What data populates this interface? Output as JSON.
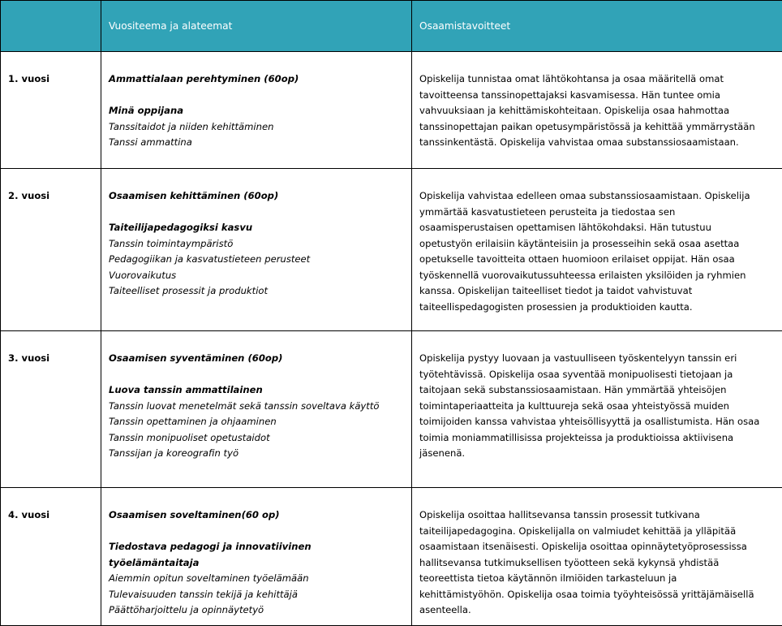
{
  "header": {
    "col1": "",
    "col2": "Vuositeema ja alateemat",
    "col3": "Osaamistavoitteet"
  },
  "header_color": "#31a3b7",
  "rows": [
    {
      "year": "1. vuosi",
      "theme": "Ammattialaan perehtyminen (60op)",
      "subtheme": [
        "Minä oppijana"
      ],
      "topics": [
        "Tanssitaidot ja niiden kehittäminen",
        "Tanssi ammattina"
      ],
      "goals": [
        "Opiskelija tunnistaa omat lähtökohtansa ja osaa määritellä omat",
        "tavoitteensa tanssinopettajaksi kasvamisessa. Hän tuntee omia",
        "vahvuuksiaan ja kehittämiskohteitaan. Opiskelija osaa hahmottaa",
        "tanssinopettajan paikan opetusympäristössä ja kehittää ymmärrystään",
        "tanssinkentästä. Opiskelija vahvistaa omaa substanssiosaamistaan."
      ]
    },
    {
      "year": "2. vuosi",
      "theme": "Osaamisen kehittäminen (60op)",
      "subtheme": [
        "Taiteilijapedagogiksi kasvu"
      ],
      "topics": [
        "Tanssin toimintaympäristö",
        "Pedagogiikan ja kasvatustieteen perusteet",
        "Vuorovaikutus",
        "Taiteelliset prosessit ja produktiot"
      ],
      "goals": [
        "Opiskelija vahvistaa edelleen omaa substanssiosaamistaan. Opiskelija",
        "ymmärtää kasvatustieteen perusteita ja tiedostaa sen",
        "osaamisperustaisen opettamisen lähtökohdaksi. Hän tutustuu",
        "opetustyön erilaisiin käytänteisiin ja prosesseihin sekä osaa asettaa",
        "opetukselle tavoitteita ottaen huomioon erilaiset oppijat. Hän osaa",
        "työskennellä vuorovaikutussuhteessa erilaisten yksilöiden ja ryhmien",
        "kanssa. Opiskelijan taiteelliset tiedot ja taidot vahvistuvat",
        "taiteellispedagogisten prosessien ja produktioiden kautta."
      ]
    },
    {
      "year": "3. vuosi",
      "theme": "Osaamisen syventäminen (60op)",
      "subtheme": [
        "Luova tanssin ammattilainen"
      ],
      "topics": [
        "Tanssin luovat menetelmät sekä tanssin soveltava käyttö",
        "Tanssin opettaminen ja ohjaaminen",
        "Tanssin monipuoliset opetustaidot",
        "Tanssijan ja koreografin työ"
      ],
      "goals": [
        "Opiskelija pystyy luovaan ja vastuulliseen työskentelyyn tanssin eri",
        "työtehtävissä. Opiskelija osaa syventää monipuolisesti tietojaan ja",
        "taitojaan sekä substanssiosaamistaan. Hän ymmärtää yhteisöjen",
        "toimintaperiaatteita ja kulttuureja sekä osaa yhteistyössä muiden",
        "toimijoiden kanssa vahvistaa yhteisöllisyyttä ja osallistumista. Hän osaa",
        "toimia moniammatillisissa projekteissa ja produktioissa aktiivisena",
        "jäsenenä."
      ]
    },
    {
      "year": "4. vuosi",
      "theme": "Osaamisen soveltaminen(60 op)",
      "subtheme": [
        "Tiedostava pedagogi ja innovatiivinen",
        "työelämäntaitaja"
      ],
      "topics": [
        "Aiemmin opitun soveltaminen työelämään",
        "Tulevaisuuden tanssin tekijä ja kehittäjä",
        "Päättöharjoittelu ja opinnäytetyö"
      ],
      "goals": [
        "Opiskelija osoittaa hallitsevansa tanssin prosessit tutkivana",
        "taiteilijapedagogina. Opiskelijalla on valmiudet kehittää ja ylläpitää",
        "osaamistaan itsenäisesti.  Opiskelija osoittaa opinnäytetyöprosessissa",
        "hallitsevansa tutkimuksellisen työotteen sekä kykynsä yhdistää",
        "teoreettista tietoa käytännön ilmiöiden tarkasteluun ja",
        "kehittämistyöhön. Opiskelija osaa toimia työyhteisössä yrittäjämäisellä",
        "asenteella."
      ]
    }
  ]
}
